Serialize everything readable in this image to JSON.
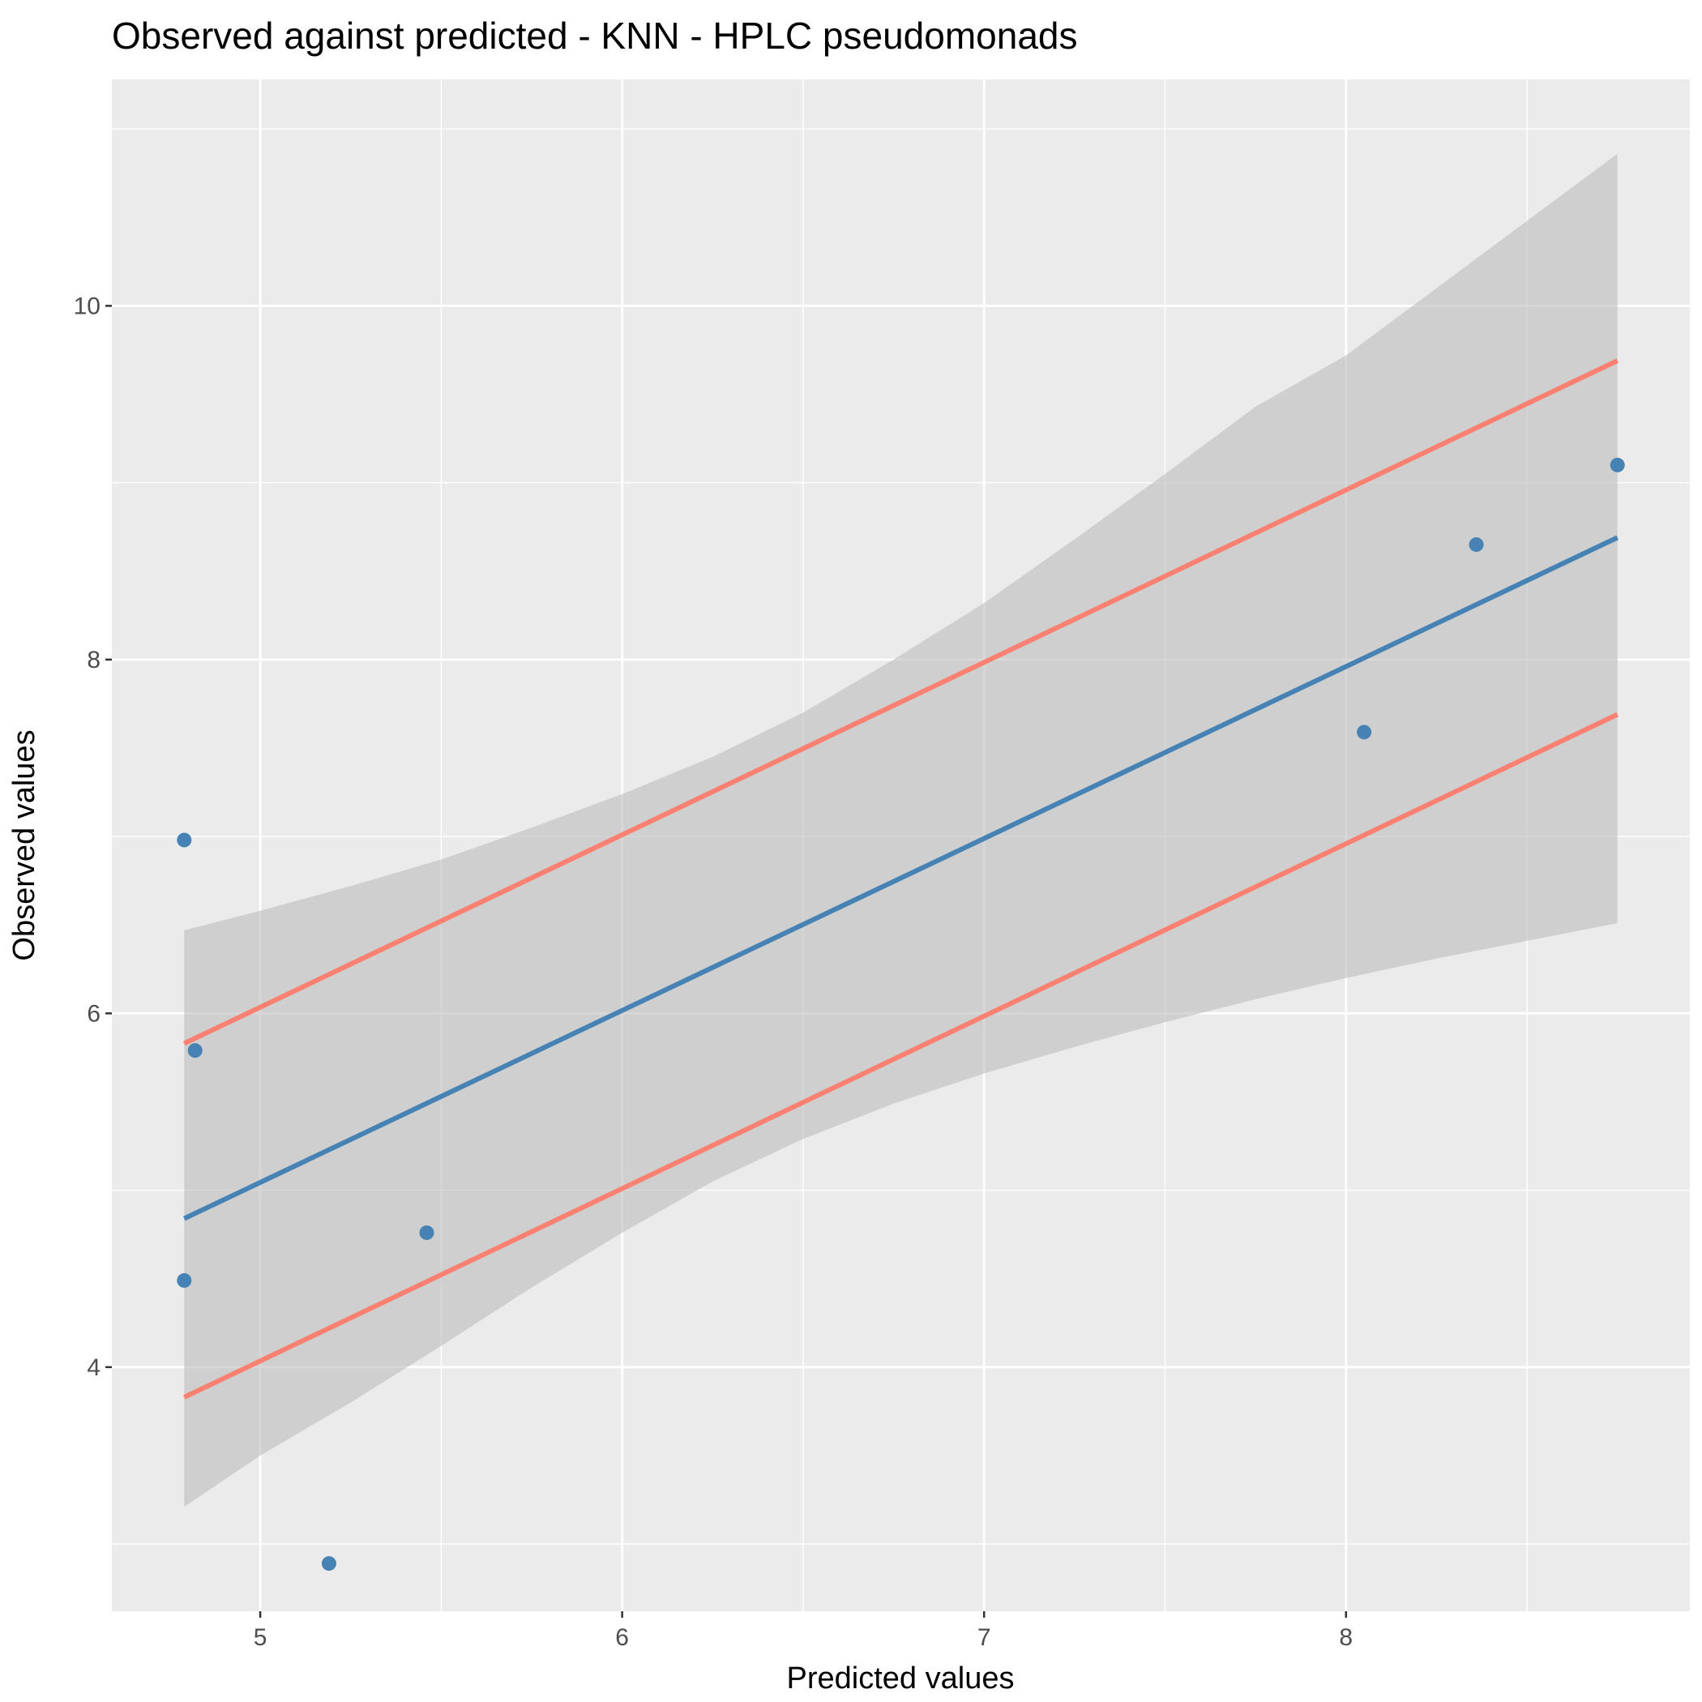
{
  "chart_data": {
    "type": "scatter",
    "title": "Observed against predicted - KNN - HPLC pseudomonads",
    "xlabel": "Predicted values",
    "ylabel": "Observed values",
    "xlim": [
      4.59,
      8.95
    ],
    "ylim": [
      2.62,
      11.28
    ],
    "x_ticks": [
      5,
      6,
      7,
      8
    ],
    "x_tick_labels": [
      "5",
      "6",
      "7",
      "8"
    ],
    "x_minor_ticks": [
      4.5,
      5.5,
      6.5,
      7.5,
      8.5
    ],
    "y_ticks": [
      4,
      6,
      8,
      10
    ],
    "y_tick_labels": [
      "4",
      "6",
      "8",
      "10"
    ],
    "y_minor_ticks": [
      3,
      5,
      7,
      9,
      11
    ],
    "grid": true,
    "points": [
      {
        "x": 4.79,
        "y": 6.98
      },
      {
        "x": 4.82,
        "y": 5.79
      },
      {
        "x": 4.79,
        "y": 4.49
      },
      {
        "x": 5.19,
        "y": 2.89
      },
      {
        "x": 5.46,
        "y": 4.76
      },
      {
        "x": 8.05,
        "y": 7.59
      },
      {
        "x": 8.36,
        "y": 8.65
      },
      {
        "x": 8.75,
        "y": 9.1
      }
    ],
    "fit_line": {
      "x": [
        4.79,
        8.75
      ],
      "y": [
        4.84,
        8.69
      ]
    },
    "confidence_band": {
      "x": [
        4.79,
        5.0,
        5.25,
        5.5,
        5.75,
        6.0,
        6.25,
        6.5,
        6.75,
        7.0,
        7.25,
        7.5,
        7.75,
        8.0,
        8.25,
        8.5,
        8.75
      ],
      "upper": [
        6.47,
        6.58,
        6.72,
        6.87,
        7.05,
        7.24,
        7.45,
        7.7,
        8.0,
        8.32,
        8.68,
        9.05,
        9.43,
        9.72,
        10.1,
        10.48,
        10.86
      ],
      "lower": [
        3.21,
        3.5,
        3.8,
        4.12,
        4.45,
        4.76,
        5.05,
        5.29,
        5.49,
        5.66,
        5.81,
        5.95,
        6.08,
        6.2,
        6.31,
        6.41,
        6.51
      ]
    },
    "reference_lines": [
      {
        "x": [
          4.79,
          8.75
        ],
        "y": [
          5.83,
          9.69
        ]
      },
      {
        "x": [
          4.79,
          8.75
        ],
        "y": [
          3.83,
          7.69
        ]
      }
    ],
    "colors": {
      "panel_background": "#ebebeb",
      "grid": "#ffffff",
      "points": "#4682b4",
      "fit_line": "#4682b4",
      "reference_lines": "#fa8072",
      "band": "#bdbdbd"
    }
  }
}
